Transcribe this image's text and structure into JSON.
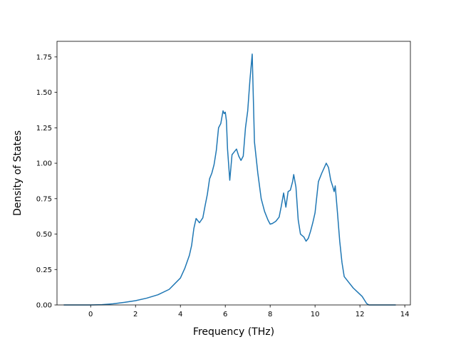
{
  "chart_data": {
    "type": "line",
    "title": "",
    "xlabel": "Frequency (THz)",
    "ylabel": "Density of States",
    "xlim": [
      -1.5,
      14.25
    ],
    "ylim": [
      0.0,
      1.86
    ],
    "xticks": [
      0,
      2,
      4,
      6,
      8,
      10,
      12,
      14
    ],
    "xtick_labels": [
      "0",
      "2",
      "4",
      "6",
      "8",
      "10",
      "12",
      "14"
    ],
    "yticks": [
      0.0,
      0.25,
      0.5,
      0.75,
      1.0,
      1.25,
      1.5,
      1.75
    ],
    "ytick_labels": [
      "0.00",
      "0.25",
      "0.50",
      "0.75",
      "1.00",
      "1.25",
      "1.50",
      "1.75"
    ],
    "grid": false,
    "colors": {
      "line": "#1f77b4"
    },
    "series": [
      {
        "x": [
          -1.2,
          -0.5,
          0.0,
          0.5,
          1.0,
          1.5,
          2.0,
          2.5,
          3.0,
          3.5,
          4.0,
          4.2,
          4.4,
          4.5,
          4.6,
          4.7,
          4.85,
          5.0,
          5.1,
          5.2,
          5.3,
          5.4,
          5.5,
          5.6,
          5.7,
          5.8,
          5.9,
          5.95,
          6.0,
          6.05,
          6.1,
          6.2,
          6.3,
          6.4,
          6.5,
          6.6,
          6.7,
          6.8,
          6.9,
          7.0,
          7.1,
          7.2,
          7.3,
          7.45,
          7.6,
          7.75,
          7.9,
          8.0,
          8.1,
          8.25,
          8.4,
          8.5,
          8.6,
          8.7,
          8.8,
          8.9,
          9.0,
          9.05,
          9.15,
          9.25,
          9.35,
          9.5,
          9.6,
          9.7,
          9.8,
          9.9,
          10.0,
          10.15,
          10.3,
          10.5,
          10.6,
          10.7,
          10.8,
          10.85,
          10.9,
          11.0,
          11.1,
          11.2,
          11.3,
          11.5,
          11.7,
          11.9,
          12.1,
          12.3,
          12.4,
          12.6,
          13.0,
          13.6
        ],
        "y": [
          0.0,
          0.0,
          0.0,
          0.002,
          0.008,
          0.018,
          0.03,
          0.048,
          0.072,
          0.11,
          0.19,
          0.26,
          0.35,
          0.42,
          0.54,
          0.61,
          0.58,
          0.615,
          0.7,
          0.78,
          0.89,
          0.93,
          0.99,
          1.09,
          1.25,
          1.28,
          1.37,
          1.35,
          1.36,
          1.3,
          1.1,
          0.88,
          1.06,
          1.08,
          1.1,
          1.05,
          1.02,
          1.05,
          1.25,
          1.37,
          1.59,
          1.77,
          1.15,
          0.93,
          0.75,
          0.66,
          0.6,
          0.57,
          0.575,
          0.59,
          0.62,
          0.7,
          0.79,
          0.69,
          0.8,
          0.81,
          0.87,
          0.92,
          0.83,
          0.6,
          0.5,
          0.48,
          0.45,
          0.47,
          0.52,
          0.58,
          0.65,
          0.87,
          0.93,
          1.0,
          0.97,
          0.88,
          0.83,
          0.8,
          0.84,
          0.65,
          0.45,
          0.3,
          0.2,
          0.16,
          0.12,
          0.09,
          0.06,
          0.01,
          0.0,
          0.0,
          0.0,
          0.0
        ]
      }
    ]
  }
}
